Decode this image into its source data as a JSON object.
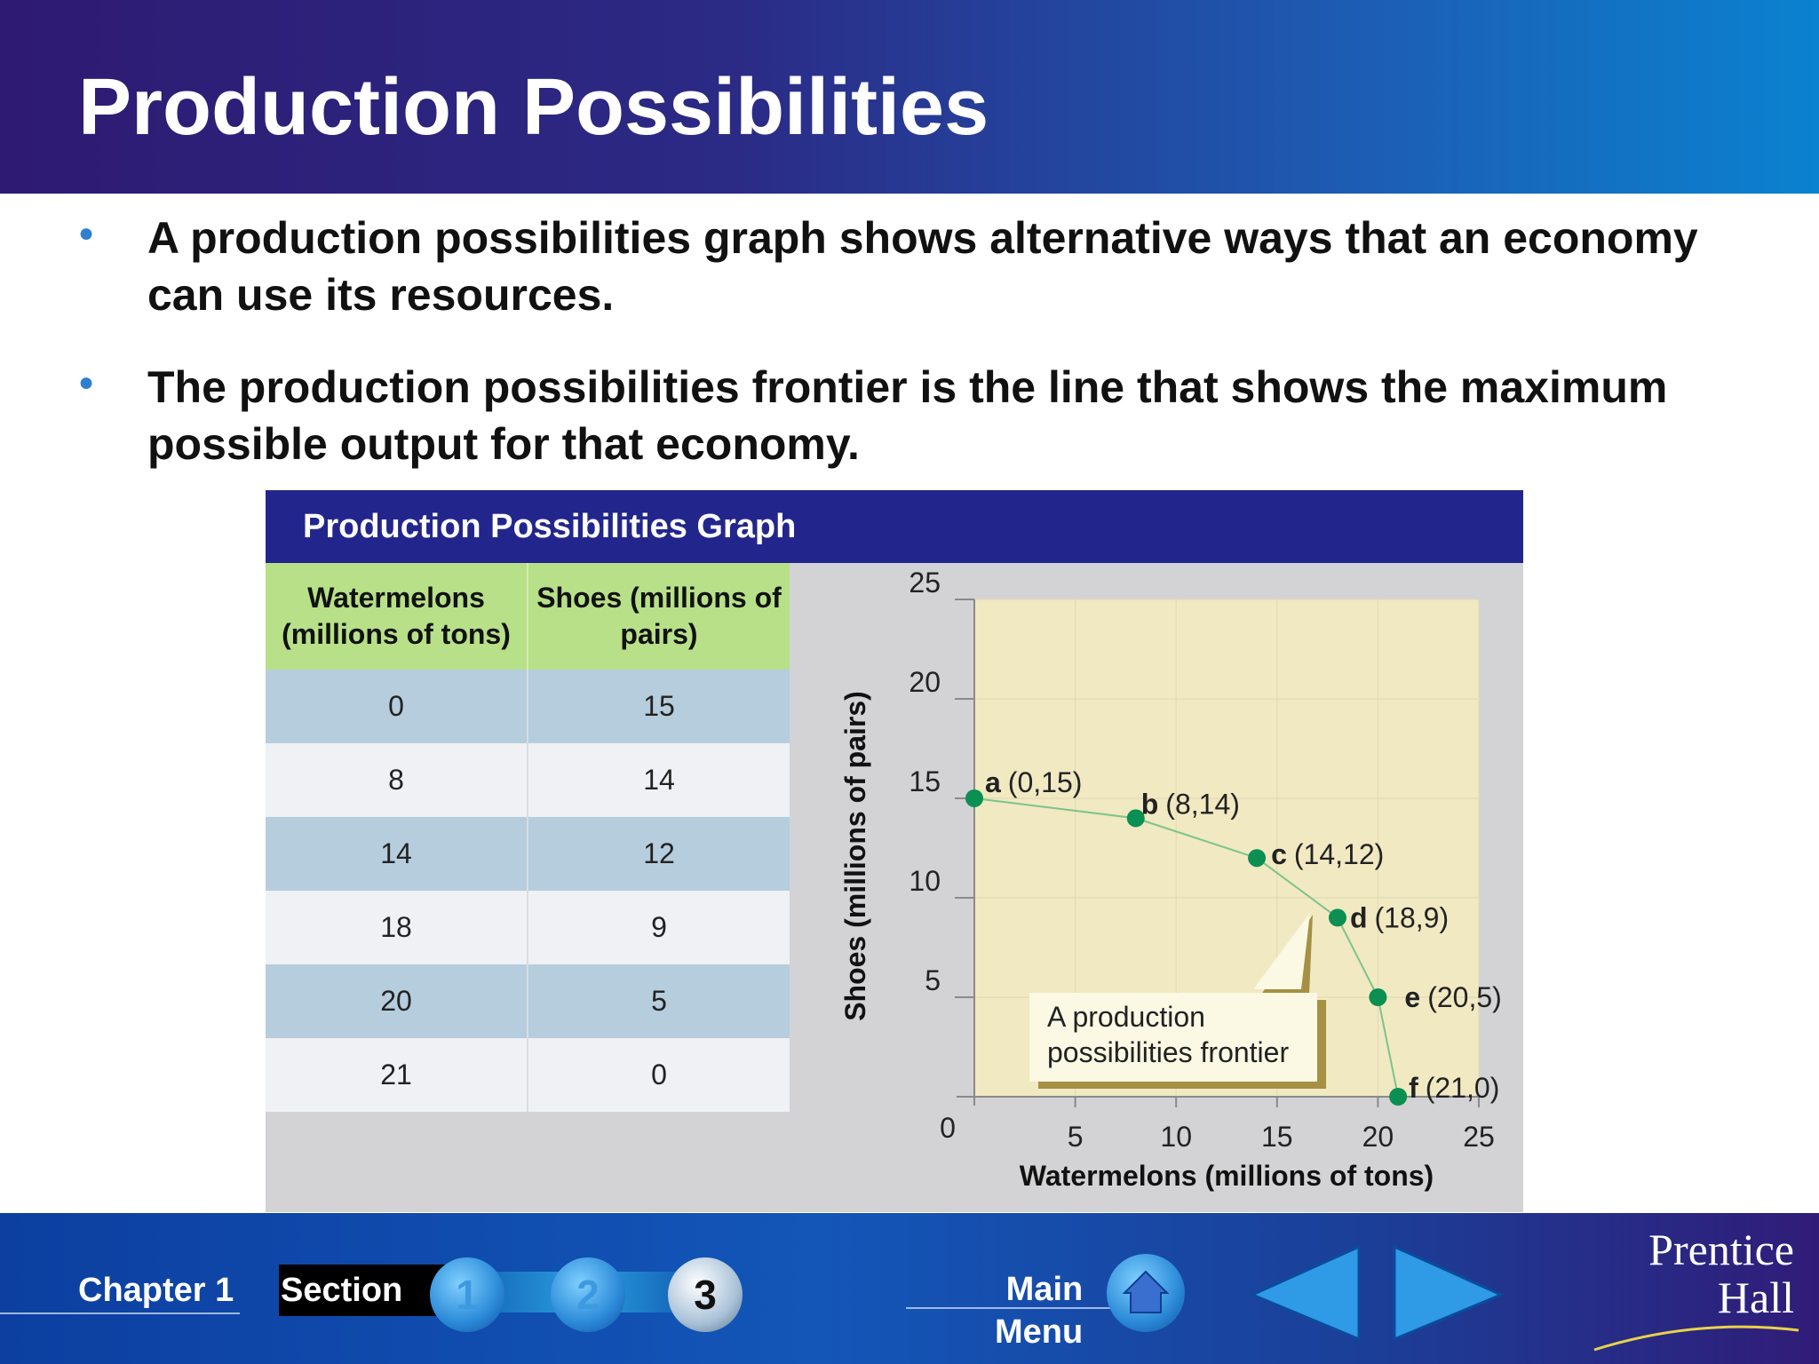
{
  "header": {
    "title": "Production Possibilities"
  },
  "bullets": [
    {
      "text": "A production possibilities graph shows alternative ways that an economy can use its resources."
    },
    {
      "text": "The production possibilities frontier is the line that shows the maximum possible output for that economy."
    }
  ],
  "panel": {
    "title": "Production Possibilities Graph",
    "table": {
      "headers": [
        "Watermelons (millions of tons)",
        "Shoes (millions of pairs)"
      ],
      "rows": [
        [
          "0",
          "15"
        ],
        [
          "8",
          "14"
        ],
        [
          "14",
          "12"
        ],
        [
          "18",
          "9"
        ],
        [
          "20",
          "5"
        ],
        [
          "21",
          "0"
        ]
      ]
    },
    "chart_data": {
      "type": "line",
      "xlabel": "Watermelons (millions of tons)",
      "ylabel": "Shoes (millions of pairs)",
      "xlim": [
        0,
        25
      ],
      "ylim": [
        0,
        25
      ],
      "x_ticks": [
        "5",
        "10",
        "15",
        "20",
        "25"
      ],
      "y_ticks": [
        "5",
        "10",
        "15",
        "20",
        "25"
      ],
      "origin_label": "0",
      "points": [
        {
          "label": "a",
          "coord": "(0,15)",
          "x": 0,
          "y": 15
        },
        {
          "label": "b",
          "coord": "(8,14)",
          "x": 8,
          "y": 14
        },
        {
          "label": "c",
          "coord": "(14,12)",
          "x": 14,
          "y": 12
        },
        {
          "label": "d",
          "coord": "(18,9)",
          "x": 18,
          "y": 9
        },
        {
          "label": "e",
          "coord": "(20,5)",
          "x": 20,
          "y": 5
        },
        {
          "label": "f",
          "coord": "(21,0)",
          "x": 21,
          "y": 0
        }
      ],
      "callout": "A production possibilities frontier",
      "colors": {
        "plot_bg": "#f1e9c2",
        "point": "#0b8f52",
        "line": "#7cc48a"
      }
    }
  },
  "footer": {
    "chapter": "Chapter 1",
    "section": "Section",
    "section_buttons": [
      "1",
      "2",
      "3"
    ],
    "main_menu": [
      "Main",
      "Menu"
    ],
    "brand": [
      "Prentice",
      "Hall"
    ]
  }
}
